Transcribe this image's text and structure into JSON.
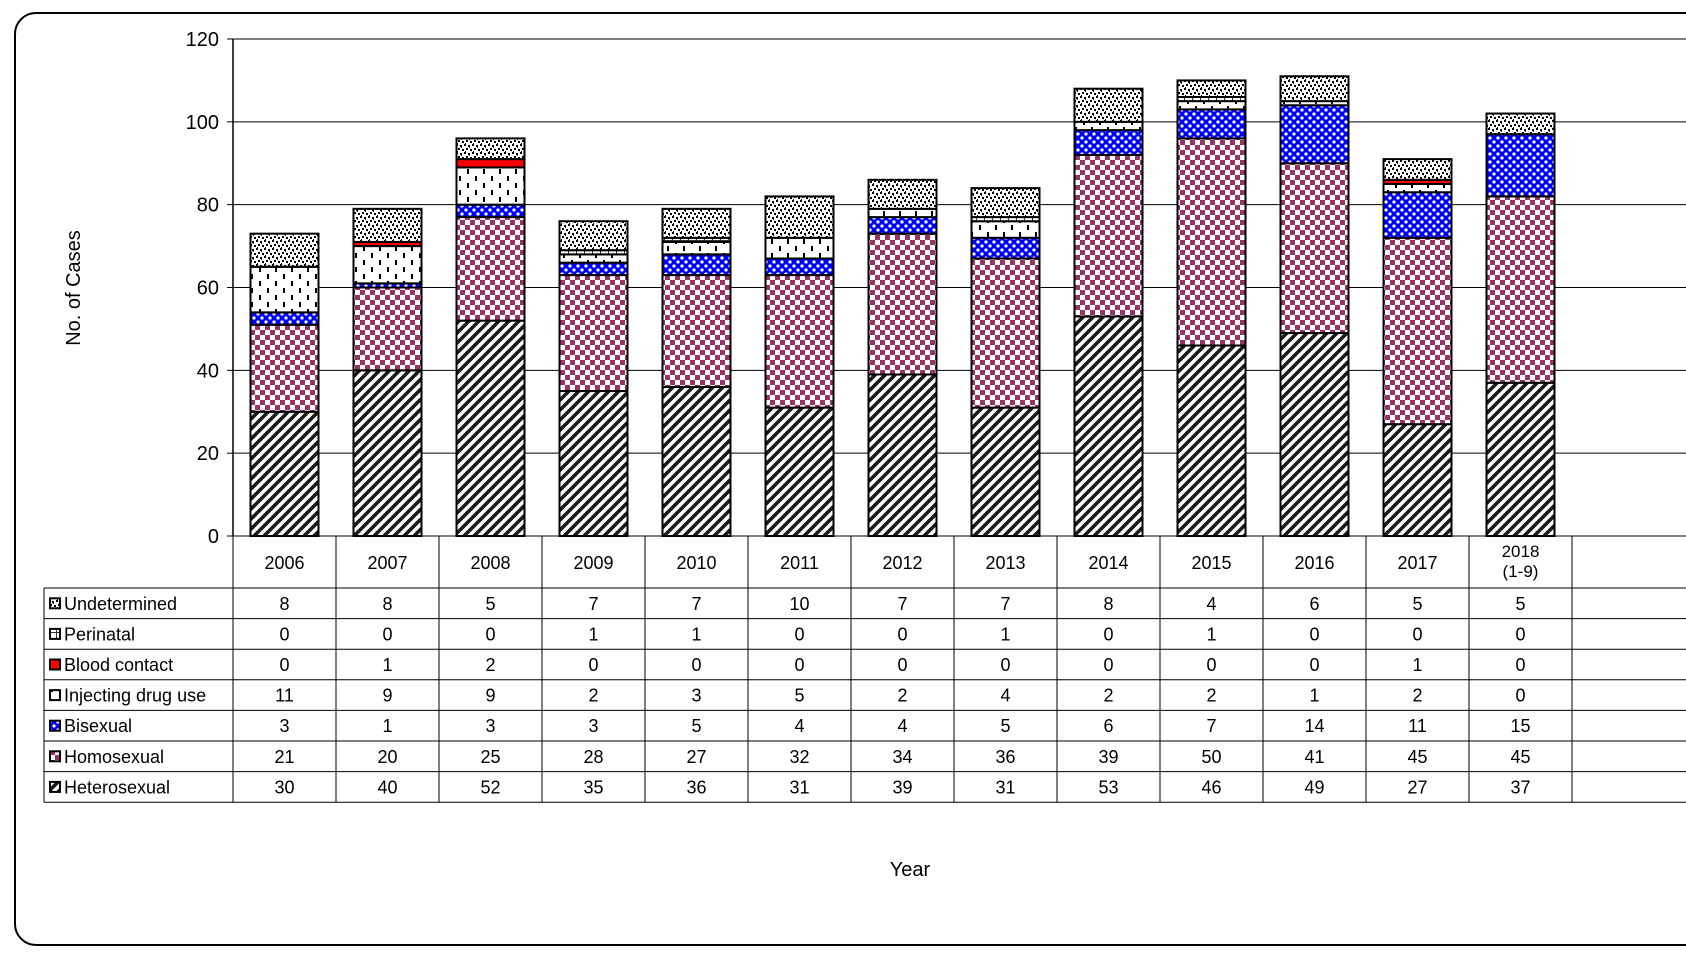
{
  "chart_data": {
    "type": "bar",
    "stacked": true,
    "title": "",
    "xlabel": "Year",
    "ylabel": "No. of  Cases",
    "ylim": [
      0,
      120
    ],
    "yticks": [
      0,
      20,
      40,
      60,
      80,
      100,
      120
    ],
    "grid": true,
    "legend": "data table, left",
    "categories": [
      "2006",
      "2007",
      "2008",
      "2009",
      "2010",
      "2011",
      "2012",
      "2013",
      "2014",
      "2015",
      "2016",
      "2017",
      "2018\n(1-9)"
    ],
    "series": [
      {
        "name": "Heterosexual",
        "pattern": "diagonal",
        "color": "#222222",
        "values": [
          30,
          40,
          52,
          35,
          36,
          31,
          39,
          31,
          53,
          46,
          49,
          27,
          37
        ]
      },
      {
        "name": "Homosexual",
        "pattern": "checker",
        "color": "#993366",
        "values": [
          21,
          20,
          25,
          28,
          27,
          32,
          34,
          36,
          39,
          50,
          41,
          45,
          45
        ]
      },
      {
        "name": "Bisexual",
        "pattern": "dots",
        "color": "#0000ff",
        "values": [
          3,
          1,
          3,
          3,
          5,
          4,
          4,
          5,
          6,
          7,
          14,
          11,
          15
        ]
      },
      {
        "name": "Injecting drug use",
        "pattern": "dashes",
        "color": "#000000",
        "values": [
          11,
          9,
          9,
          2,
          3,
          5,
          2,
          4,
          2,
          2,
          1,
          2,
          0
        ]
      },
      {
        "name": "Blood contact",
        "pattern": "solid",
        "color": "#ff0000",
        "values": [
          0,
          1,
          2,
          0,
          0,
          0,
          0,
          0,
          0,
          0,
          0,
          1,
          0
        ]
      },
      {
        "name": "Perinatal",
        "pattern": "grid",
        "color": "#333333",
        "values": [
          0,
          0,
          0,
          1,
          1,
          0,
          0,
          1,
          0,
          1,
          0,
          0,
          0
        ]
      },
      {
        "name": "Undetermined",
        "pattern": "speckle",
        "color": "#000000",
        "values": [
          8,
          8,
          5,
          7,
          7,
          10,
          7,
          7,
          8,
          4,
          6,
          5,
          5
        ]
      }
    ],
    "table_row_order": [
      "Undetermined",
      "Perinatal",
      "Blood contact",
      "Injecting drug use",
      "Bisexual",
      "Homosexual",
      "Heterosexual"
    ]
  }
}
